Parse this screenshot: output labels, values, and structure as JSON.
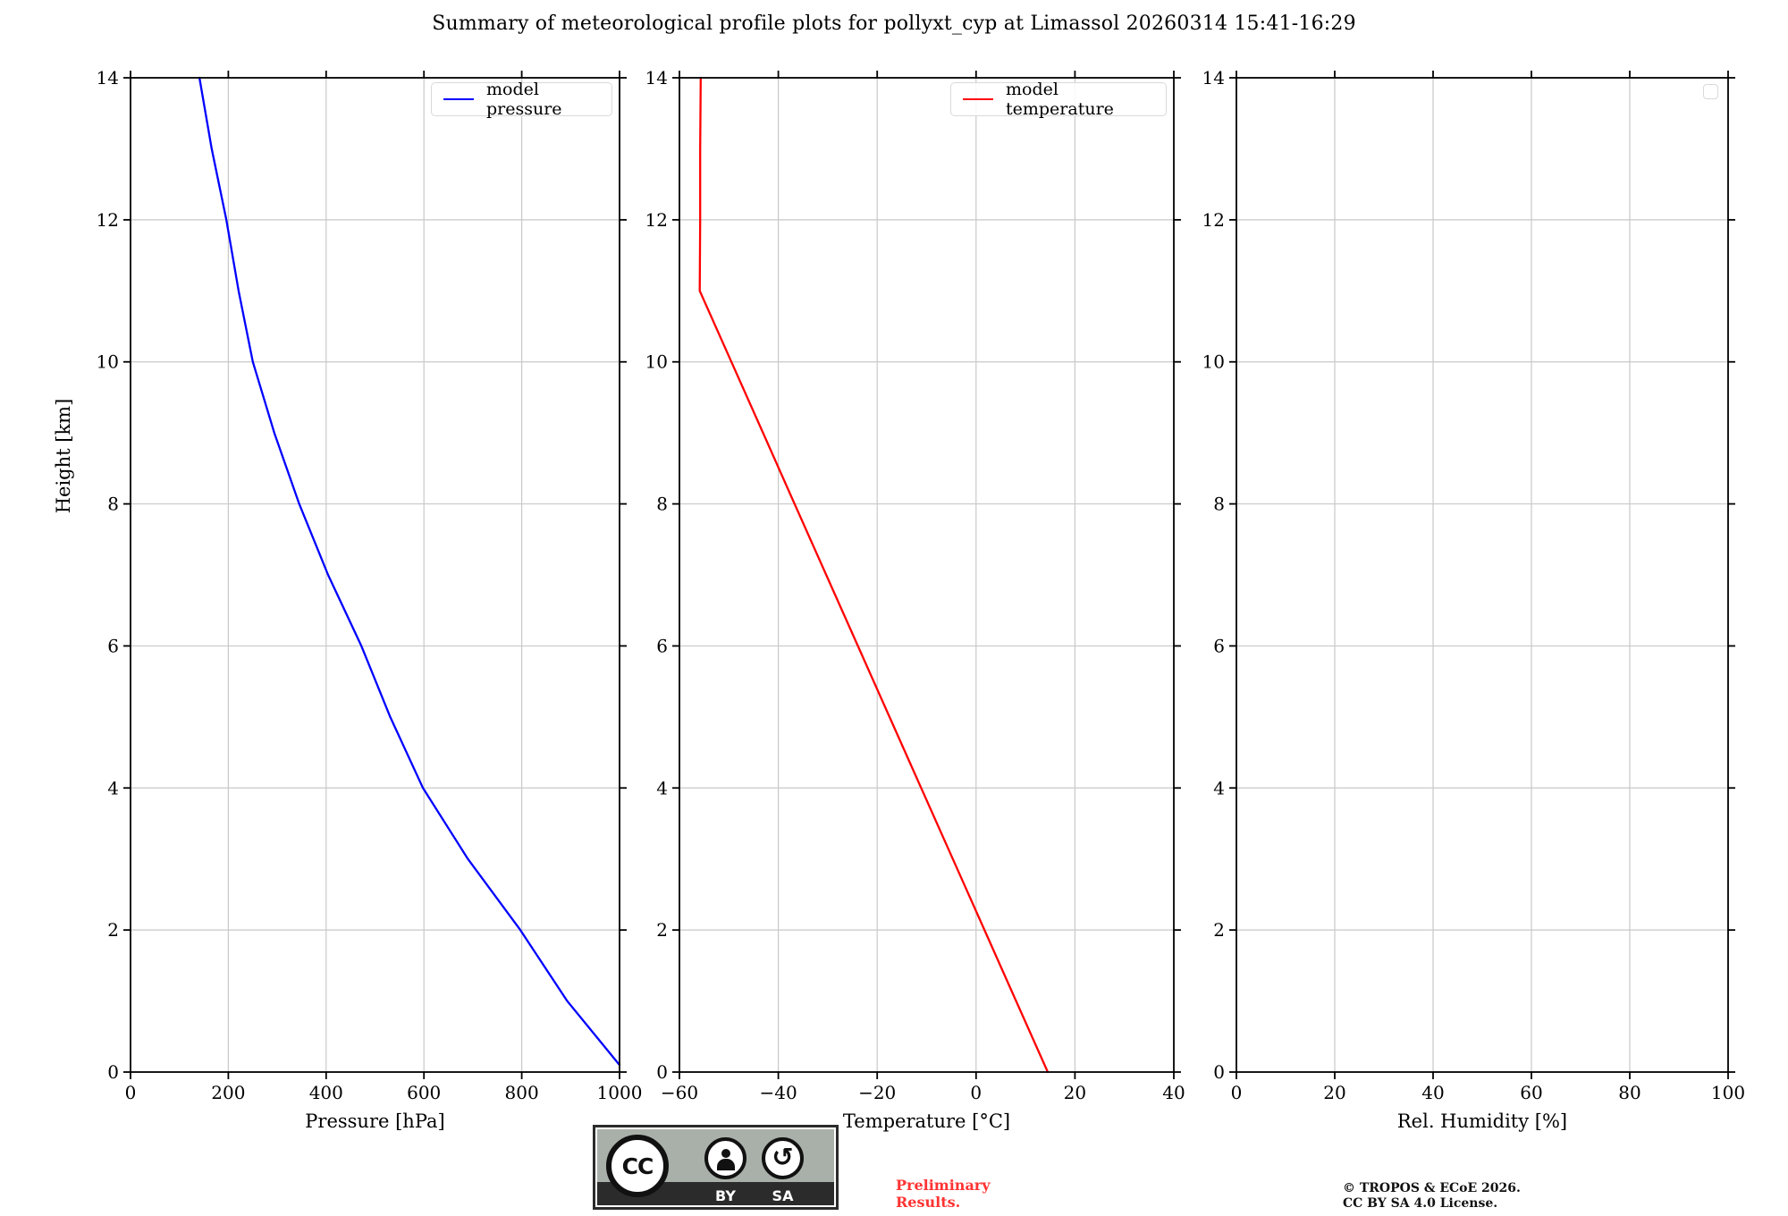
{
  "title": "Summary of meteorological profile plots for pollyxt_cyp at Limassol 20260314 15:41-16:29",
  "ylabel": "Height [km]",
  "ylim": [
    0,
    14
  ],
  "yticks": [
    0,
    2,
    4,
    6,
    8,
    10,
    12,
    14
  ],
  "colors": {
    "axis": "#000000",
    "grid": "#c9c9c9",
    "background": "#ffffff",
    "pressure_line": "#0000ff",
    "temperature_line": "#ff0000",
    "preliminary_text": "#ff3333"
  },
  "chart_data": [
    {
      "id": "pressure",
      "type": "line",
      "xlabel": "Pressure [hPa]",
      "xlim": [
        0,
        1000
      ],
      "xticks": [
        0,
        200,
        400,
        600,
        800,
        1000
      ],
      "xtick_labels": [
        "0",
        "200",
        "400",
        "600",
        "800",
        "1000"
      ],
      "grid": true,
      "legend_position": "upper right",
      "series": [
        {
          "id": "model-pressure",
          "name": "model pressure",
          "color": "#0000ff",
          "x": [
            141,
            166,
            196,
            221,
            250,
            294,
            345,
            404,
            472,
            531,
            598,
            690,
            797,
            893,
            1000
          ],
          "y": [
            14,
            13,
            12,
            11,
            10,
            9,
            8,
            7,
            6,
            5,
            4,
            3,
            2,
            1,
            0.1
          ]
        }
      ]
    },
    {
      "id": "temperature",
      "type": "line",
      "xlabel": "Temperature [°C]",
      "xlim": [
        -60,
        40
      ],
      "xticks": [
        -60,
        -40,
        -20,
        0,
        20,
        40
      ],
      "xtick_labels": [
        "−60",
        "−40",
        "−20",
        "0",
        "20",
        "40"
      ],
      "grid": true,
      "legend_position": "upper right",
      "series": [
        {
          "id": "model-temperature",
          "name": "model temperature",
          "color": "#ff0000",
          "x": [
            -55.7,
            -55.8,
            -55.8,
            -55.9,
            -49.5,
            -43.1,
            -36.7,
            -30.3,
            -23.9,
            -17.5,
            -11.1,
            -4.7,
            1.7,
            8.1,
            14.5
          ],
          "y": [
            14,
            13,
            12,
            11,
            10,
            9,
            8,
            7,
            6,
            5,
            4,
            3,
            2,
            1,
            0
          ]
        }
      ]
    },
    {
      "id": "humidity",
      "type": "line",
      "xlabel": "Rel. Humidity [%]",
      "xlim": [
        0,
        100
      ],
      "xticks": [
        0,
        20,
        40,
        60,
        80,
        100
      ],
      "xtick_labels": [
        "0",
        "20",
        "40",
        "60",
        "80",
        "100"
      ],
      "grid": true,
      "legend_position": "upper right",
      "series": []
    }
  ],
  "footer": {
    "badge": {
      "cc": "CC",
      "by": "BY",
      "sa": "SA"
    },
    "preliminary": {
      "line1": "Preliminary",
      "line2": "Results."
    },
    "copyright": {
      "line1": "© TROPOS & ECoE 2026.",
      "line2": "CC BY SA 4.0 License."
    }
  }
}
